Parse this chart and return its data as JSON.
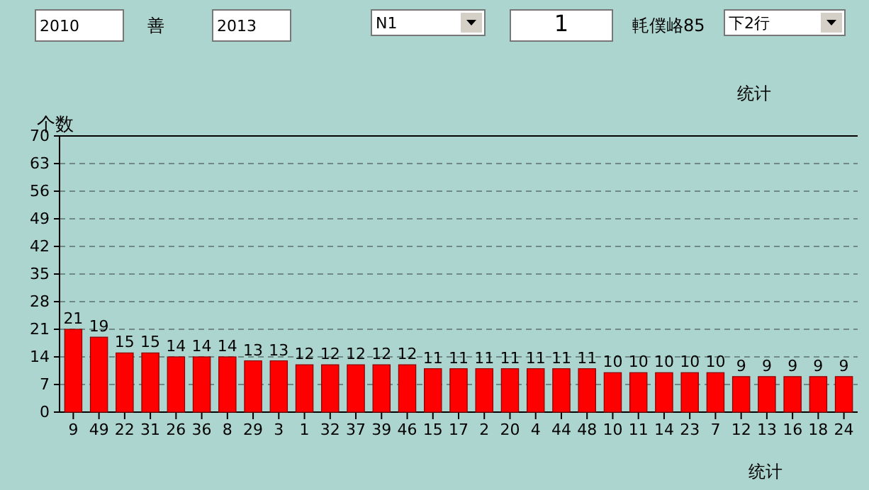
{
  "chart_data": {
    "type": "bar",
    "title": "统计",
    "xlabel": "统计",
    "ylabel": "个数",
    "annotations": [
      "2010",
      "善",
      "2013",
      "N1",
      "1",
      "軞僕峈85",
      "下2行"
    ],
    "categories": [
      "9",
      "49",
      "22",
      "31",
      "26",
      "36",
      "8",
      "29",
      "3",
      "1",
      "32",
      "37",
      "39",
      "46",
      "15",
      "17",
      "2",
      "20",
      "4",
      "44",
      "48",
      "10",
      "11",
      "14",
      "23",
      "7",
      "12",
      "13",
      "16",
      "18",
      "24"
    ],
    "values": [
      21,
      19,
      15,
      15,
      14,
      14,
      14,
      13,
      13,
      12,
      12,
      12,
      12,
      12,
      11,
      11,
      11,
      11,
      11,
      11,
      11,
      10,
      10,
      10,
      10,
      10,
      9,
      9,
      9,
      9,
      9
    ],
    "color": "#ff0000",
    "ylim": [
      0,
      70
    ],
    "yticks": [
      0,
      7,
      14,
      21,
      28,
      35,
      42,
      49,
      56,
      63,
      70
    ],
    "grid": "y",
    "data_labels": true
  }
}
